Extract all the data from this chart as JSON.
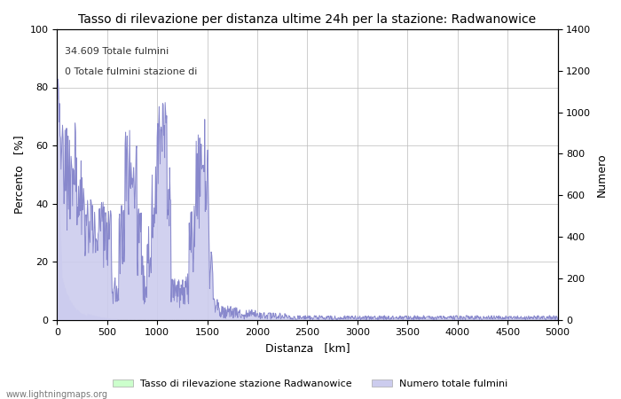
{
  "title": "Tasso di rilevazione per distanza ultime 24h per la stazione: Radwanowice",
  "xlabel": "Distanza   [km]",
  "ylabel_left": "Percento   [%]",
  "ylabel_right": "Numero",
  "annotation_line1": "34.609 Totale fulmini",
  "annotation_line2": "0 Totale fulmini stazione di",
  "watermark": "www.lightningmaps.org",
  "legend_label1": "Tasso di rilevazione stazione Radwanowice",
  "legend_label2": "Numero totale fulmini",
  "xlim": [
    0,
    5000
  ],
  "ylim_left": [
    0,
    100
  ],
  "ylim_right": [
    0,
    1400
  ],
  "xticks": [
    0,
    500,
    1000,
    1500,
    2000,
    2500,
    3000,
    3500,
    4000,
    4500,
    5000
  ],
  "yticks_left": [
    0,
    20,
    40,
    60,
    80,
    100
  ],
  "yticks_right": [
    0,
    200,
    400,
    600,
    800,
    1000,
    1200,
    1400
  ],
  "line_color": "#8888cc",
  "fill_color_detection": "#ccffcc",
  "fill_color_total": "#ccccee",
  "bg_color": "#ffffff",
  "grid_color": "#bbbbbb"
}
